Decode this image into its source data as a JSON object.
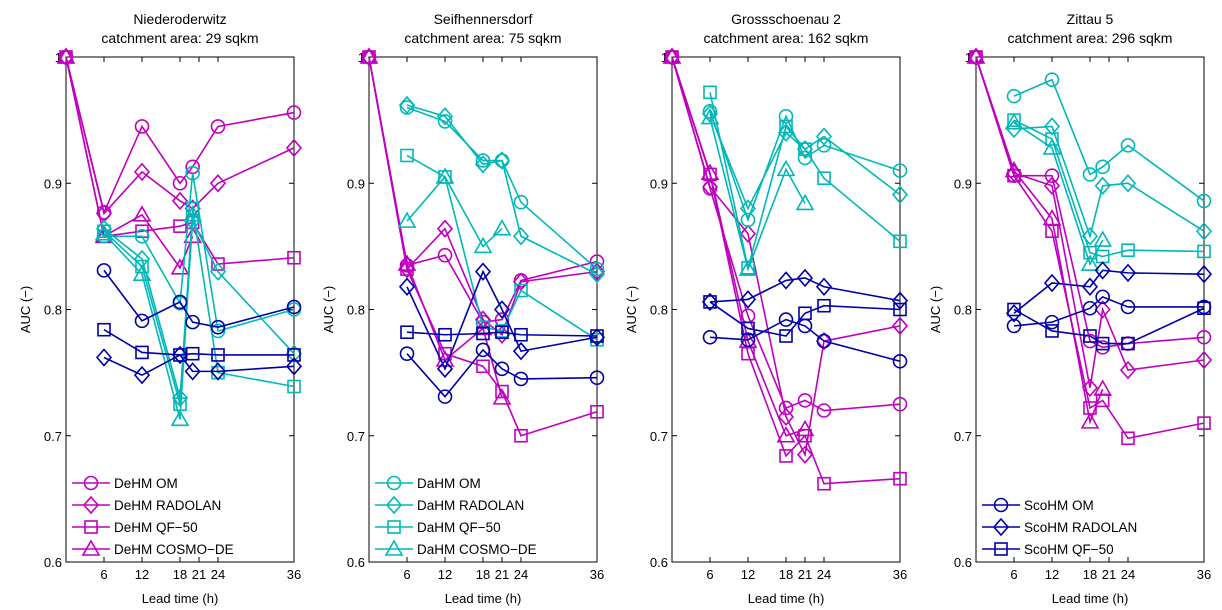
{
  "chart_data": [
    {
      "type": "line",
      "title": "Niederoderwitz",
      "subtitle": "catchment area: 29 sqkm",
      "xlabel": "Lead time (h)",
      "ylabel": "AUC (−)",
      "xlim": [
        0,
        36
      ],
      "ylim": [
        0.6,
        1.0
      ],
      "xticks": [
        6,
        12,
        18,
        21,
        24,
        36
      ],
      "xtick_labels": [
        "6",
        "12",
        "18",
        "21",
        "24",
        "36"
      ],
      "yticks": [
        0.6,
        0.7,
        0.8,
        0.9,
        1.0
      ],
      "ytick_labels": [
        "0.6",
        "0.7",
        "0.8",
        "0.9",
        "1"
      ],
      "legend_position": "bottom-left",
      "series": [
        {
          "name": "DeHM OM",
          "color": "#c000c0",
          "marker": "circle",
          "x": [
            0,
            6,
            12,
            18,
            20,
            24,
            36
          ],
          "y": [
            1.0,
            0.877,
            0.945,
            0.9,
            0.913,
            0.945,
            0.956
          ]
        },
        {
          "name": "DeHM RADOLAN",
          "color": "#c000c0",
          "marker": "diamond",
          "x": [
            0,
            6,
            12,
            18,
            20,
            24,
            36
          ],
          "y": [
            1.0,
            0.876,
            0.909,
            0.886,
            0.88,
            0.9,
            0.928
          ]
        },
        {
          "name": "DeHM QF−50",
          "color": "#c000c0",
          "marker": "square",
          "x": [
            0,
            6,
            12,
            18,
            20,
            24,
            36
          ],
          "y": [
            1.0,
            0.858,
            0.862,
            0.866,
            0.869,
            0.836,
            0.841
          ]
        },
        {
          "name": "DeHM COSMO−DE",
          "color": "#c000c0",
          "marker": "triangle",
          "x": [
            0,
            6,
            12,
            18,
            20
          ],
          "y": [
            1.0,
            0.858,
            0.875,
            0.833,
            0.858
          ]
        },
        {
          "color": "#00b8b8",
          "marker": "circle",
          "x": [
            6,
            12,
            18,
            20,
            24,
            36
          ],
          "y": [
            0.858,
            0.858,
            0.805,
            0.908,
            0.783,
            0.8
          ]
        },
        {
          "color": "#00b8b8",
          "marker": "diamond",
          "x": [
            6,
            12,
            18,
            20,
            24,
            36
          ],
          "y": [
            0.864,
            0.84,
            0.73,
            0.87,
            0.83,
            0.765
          ]
        },
        {
          "color": "#00b8b8",
          "marker": "square",
          "x": [
            6,
            12,
            18,
            20,
            24,
            36
          ],
          "y": [
            0.862,
            0.834,
            0.725,
            0.88,
            0.75,
            0.739
          ]
        },
        {
          "color": "#00b8b8",
          "marker": "triangle",
          "x": [
            6,
            12,
            18,
            20
          ],
          "y": [
            0.86,
            0.828,
            0.713,
            0.875
          ]
        },
        {
          "color": "#0000a8",
          "marker": "circle",
          "x": [
            6,
            12,
            18,
            20,
            24,
            36
          ],
          "y": [
            0.831,
            0.791,
            0.806,
            0.79,
            0.786,
            0.802
          ]
        },
        {
          "color": "#0000a8",
          "marker": "diamond",
          "x": [
            6,
            12,
            18,
            20,
            24,
            36
          ],
          "y": [
            0.762,
            0.748,
            0.764,
            0.751,
            0.751,
            0.755
          ]
        },
        {
          "color": "#0000a8",
          "marker": "square",
          "x": [
            6,
            12,
            18,
            20,
            24,
            36
          ],
          "y": [
            0.784,
            0.766,
            0.764,
            0.765,
            0.764,
            0.764
          ]
        }
      ]
    },
    {
      "type": "line",
      "title": "Seifhennersdorf",
      "subtitle": "catchment area: 75 sqkm",
      "xlabel": "Lead time (h)",
      "ylabel": "AUC (−)",
      "xlim": [
        0,
        36
      ],
      "ylim": [
        0.6,
        1.0
      ],
      "xticks": [
        6,
        12,
        18,
        21,
        24,
        36
      ],
      "xtick_labels": [
        "6",
        "12",
        "18",
        "21",
        "24",
        "36"
      ],
      "yticks": [
        0.6,
        0.7,
        0.8,
        0.9,
        1.0
      ],
      "ytick_labels": [
        "0.6",
        "0.7",
        "0.8",
        "0.9",
        "1"
      ],
      "legend_position": "bottom-left",
      "series": [
        {
          "color": "#c000c0",
          "marker": "circle",
          "x": [
            0,
            6,
            12,
            18,
            21,
            24,
            36
          ],
          "y": [
            1.0,
            0.835,
            0.843,
            0.79,
            0.792,
            0.823,
            0.838
          ]
        },
        {
          "color": "#c000c0",
          "marker": "diamond",
          "x": [
            0,
            6,
            12,
            18,
            21,
            24,
            36
          ],
          "y": [
            1.0,
            0.832,
            0.864,
            0.792,
            0.78,
            0.822,
            0.83
          ]
        },
        {
          "color": "#c000c0",
          "marker": "square",
          "x": [
            0,
            6,
            12,
            18,
            21,
            24,
            36
          ],
          "y": [
            1.0,
            0.832,
            0.765,
            0.755,
            0.735,
            0.7,
            0.719
          ]
        },
        {
          "color": "#c000c0",
          "marker": "triangle",
          "x": [
            0,
            6,
            12,
            18,
            21
          ],
          "y": [
            1.0,
            0.836,
            0.76,
            0.785,
            0.73
          ]
        },
        {
          "name": "DaHM OM",
          "color": "#00b8b8",
          "marker": "circle",
          "x": [
            6,
            12,
            18,
            21,
            24,
            36
          ],
          "y": [
            0.96,
            0.949,
            0.918,
            0.918,
            0.885,
            0.832
          ]
        },
        {
          "name": "DaHM RADOLAN",
          "color": "#00b8b8",
          "marker": "diamond",
          "x": [
            6,
            12,
            18,
            21,
            24,
            36
          ],
          "y": [
            0.962,
            0.953,
            0.915,
            0.918,
            0.858,
            0.828
          ]
        },
        {
          "name": "DaHM QF−50",
          "color": "#00b8b8",
          "marker": "square",
          "x": [
            6,
            12,
            18,
            21,
            24,
            36
          ],
          "y": [
            0.922,
            0.905,
            0.786,
            0.783,
            0.815,
            0.776
          ]
        },
        {
          "name": "DaHM COSMO−DE",
          "color": "#00b8b8",
          "marker": "triangle",
          "x": [
            6,
            12,
            18,
            21
          ],
          "y": [
            0.87,
            0.905,
            0.85,
            0.864
          ]
        },
        {
          "color": "#0000a8",
          "marker": "circle",
          "x": [
            6,
            12,
            18,
            21,
            24,
            36
          ],
          "y": [
            0.765,
            0.731,
            0.768,
            0.753,
            0.745,
            0.746
          ]
        },
        {
          "color": "#0000a8",
          "marker": "diamond",
          "x": [
            6,
            12,
            18,
            21,
            24,
            36
          ],
          "y": [
            0.818,
            0.753,
            0.83,
            0.8,
            0.767,
            0.778
          ]
        },
        {
          "color": "#0000a8",
          "marker": "square",
          "x": [
            6,
            12,
            18,
            21,
            24,
            36
          ],
          "y": [
            0.782,
            0.78,
            0.781,
            0.782,
            0.78,
            0.779
          ]
        }
      ]
    },
    {
      "type": "line",
      "title": "Grossschoenau 2",
      "subtitle": "catchment area: 162 sqkm",
      "xlabel": "Lead time (h)",
      "ylabel": "AUC (−)",
      "xlim": [
        0,
        36
      ],
      "ylim": [
        0.6,
        1.0
      ],
      "xticks": [
        6,
        12,
        18,
        21,
        24,
        36
      ],
      "xtick_labels": [
        "6",
        "12",
        "18",
        "21",
        "24",
        "36"
      ],
      "yticks": [
        0.6,
        0.7,
        0.8,
        0.9,
        1.0
      ],
      "ytick_labels": [
        "0.6",
        "0.7",
        "0.8",
        "0.9",
        "1"
      ],
      "legend_position": "none",
      "series": [
        {
          "color": "#c000c0",
          "marker": "circle",
          "x": [
            0,
            6,
            12,
            18,
            21,
            24,
            36
          ],
          "y": [
            1.0,
            0.896,
            0.795,
            0.722,
            0.728,
            0.72,
            0.725
          ]
        },
        {
          "color": "#c000c0",
          "marker": "diamond",
          "x": [
            0,
            6,
            12,
            18,
            21,
            24,
            36
          ],
          "y": [
            1.0,
            0.897,
            0.86,
            0.715,
            0.685,
            0.775,
            0.787
          ]
        },
        {
          "color": "#c000c0",
          "marker": "square",
          "x": [
            0,
            6,
            12,
            18,
            21,
            24,
            36
          ],
          "y": [
            1.0,
            0.907,
            0.765,
            0.684,
            0.7,
            0.662,
            0.666
          ]
        },
        {
          "color": "#c000c0",
          "marker": "triangle",
          "x": [
            0,
            6,
            12,
            18,
            21
          ],
          "y": [
            1.0,
            0.908,
            0.775,
            0.7,
            0.705
          ]
        },
        {
          "color": "#00b8b8",
          "marker": "circle",
          "x": [
            6,
            12,
            18,
            21,
            24,
            36
          ],
          "y": [
            0.957,
            0.871,
            0.953,
            0.92,
            0.93,
            0.91
          ]
        },
        {
          "color": "#00b8b8",
          "marker": "diamond",
          "x": [
            6,
            12,
            18,
            21,
            24,
            36
          ],
          "y": [
            0.955,
            0.88,
            0.94,
            0.927,
            0.937,
            0.891
          ]
        },
        {
          "color": "#00b8b8",
          "marker": "square",
          "x": [
            6,
            12,
            18,
            21,
            24,
            36
          ],
          "y": [
            0.972,
            0.833,
            0.945,
            0.927,
            0.904,
            0.854
          ]
        },
        {
          "color": "#00b8b8",
          "marker": "triangle",
          "x": [
            6,
            12,
            18,
            21
          ],
          "y": [
            0.952,
            0.832,
            0.911,
            0.884
          ]
        },
        {
          "color": "#0000a8",
          "marker": "circle",
          "x": [
            6,
            12,
            18,
            21,
            24,
            36
          ],
          "y": [
            0.778,
            0.776,
            0.792,
            0.787,
            0.775,
            0.759
          ]
        },
        {
          "color": "#0000a8",
          "marker": "diamond",
          "x": [
            6,
            12,
            18,
            21,
            24,
            36
          ],
          "y": [
            0.806,
            0.808,
            0.823,
            0.825,
            0.818,
            0.807
          ]
        },
        {
          "color": "#0000a8",
          "marker": "square",
          "x": [
            6,
            12,
            18,
            21,
            24,
            36
          ],
          "y": [
            0.806,
            0.785,
            0.779,
            0.797,
            0.803,
            0.8
          ]
        }
      ]
    },
    {
      "type": "line",
      "title": "Zittau 5",
      "subtitle": "catchment area: 296 sqkm",
      "xlabel": "Lead time (h)",
      "ylabel": "AUC (−)",
      "xlim": [
        0,
        36
      ],
      "ylim": [
        0.6,
        1.0
      ],
      "xticks": [
        6,
        12,
        18,
        21,
        24,
        36
      ],
      "xtick_labels": [
        "6",
        "12",
        "18",
        "21",
        "24",
        "36"
      ],
      "yticks": [
        0.6,
        0.7,
        0.8,
        0.9,
        1.0
      ],
      "ytick_labels": [
        "0.6",
        "0.7",
        "0.8",
        "0.9",
        "1"
      ],
      "legend_position": "bottom-left",
      "series": [
        {
          "color": "#c000c0",
          "marker": "circle",
          "x": [
            0,
            6,
            12,
            18,
            20,
            24,
            36
          ],
          "y": [
            1.0,
            0.906,
            0.906,
            0.775,
            0.77,
            0.773,
            0.778
          ]
        },
        {
          "color": "#c000c0",
          "marker": "diamond",
          "x": [
            0,
            6,
            12,
            18,
            20,
            24,
            36
          ],
          "y": [
            1.0,
            0.908,
            0.898,
            0.738,
            0.8,
            0.752,
            0.76
          ]
        },
        {
          "color": "#c000c0",
          "marker": "square",
          "x": [
            0,
            6,
            12,
            18,
            20,
            24,
            36
          ],
          "y": [
            1.0,
            0.906,
            0.862,
            0.722,
            0.728,
            0.698,
            0.71
          ]
        },
        {
          "color": "#c000c0",
          "marker": "triangle",
          "x": [
            0,
            6,
            12,
            18,
            20
          ],
          "y": [
            1.0,
            0.91,
            0.872,
            0.711,
            0.737
          ]
        },
        {
          "color": "#00b8b8",
          "marker": "circle",
          "x": [
            6,
            12,
            18,
            20,
            24,
            36
          ],
          "y": [
            0.969,
            0.982,
            0.907,
            0.913,
            0.93,
            0.886
          ]
        },
        {
          "color": "#00b8b8",
          "marker": "diamond",
          "x": [
            6,
            12,
            18,
            20,
            24,
            36
          ],
          "y": [
            0.943,
            0.945,
            0.858,
            0.898,
            0.9,
            0.862
          ]
        },
        {
          "color": "#00b8b8",
          "marker": "square",
          "x": [
            6,
            12,
            18,
            20,
            24,
            36
          ],
          "y": [
            0.95,
            0.935,
            0.845,
            0.842,
            0.847,
            0.846
          ]
        },
        {
          "color": "#00b8b8",
          "marker": "triangle",
          "x": [
            6,
            12,
            18,
            20
          ],
          "y": [
            0.948,
            0.928,
            0.836,
            0.855
          ]
        },
        {
          "name": "ScoHM OM",
          "color": "#0000a8",
          "marker": "circle",
          "x": [
            6,
            12,
            18,
            20,
            24,
            36
          ],
          "y": [
            0.787,
            0.79,
            0.801,
            0.81,
            0.802,
            0.802
          ]
        },
        {
          "name": "ScoHM RADOLAN",
          "color": "#0000a8",
          "marker": "diamond",
          "x": [
            6,
            12,
            18,
            20,
            24,
            36
          ],
          "y": [
            0.797,
            0.821,
            0.818,
            0.831,
            0.829,
            0.828
          ]
        },
        {
          "name": "ScoHM QF−50",
          "color": "#0000a8",
          "marker": "square",
          "x": [
            6,
            12,
            18,
            20,
            24,
            36
          ],
          "y": [
            0.8,
            0.783,
            0.779,
            0.773,
            0.773,
            0.801
          ]
        }
      ]
    }
  ]
}
